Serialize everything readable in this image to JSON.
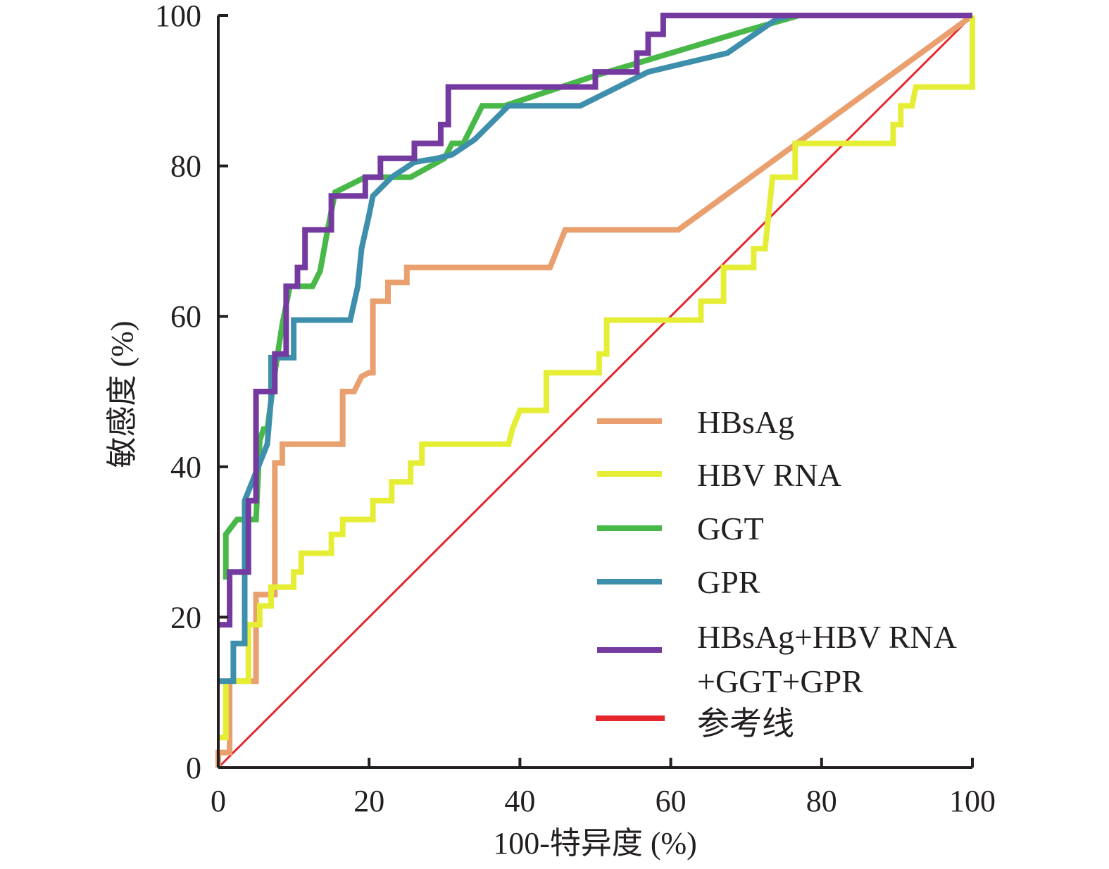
{
  "chart_data": {
    "type": "line",
    "title": "",
    "xlabel": "100-特异度 (%)",
    "ylabel": "敏感度 (%)",
    "xlim": [
      0,
      100
    ],
    "ylim": [
      0,
      100
    ],
    "xticks": [
      "0",
      "20",
      "40",
      "60",
      "80",
      "100"
    ],
    "yticks": [
      "0",
      "20",
      "40",
      "60",
      "80",
      "100"
    ],
    "grid": false,
    "legend_position": "bottom-right",
    "series": [
      {
        "name": "HBsAg",
        "color": "#e9a06e",
        "points": [
          [
            0,
            0
          ],
          [
            0,
            2
          ],
          [
            1.5,
            2
          ],
          [
            1.5,
            11.5
          ],
          [
            5,
            11.5
          ],
          [
            5,
            18.5
          ],
          [
            5,
            23
          ],
          [
            7.5,
            23
          ],
          [
            7.5,
            40.5
          ],
          [
            8.5,
            40.5
          ],
          [
            8.5,
            43
          ],
          [
            16.5,
            43
          ],
          [
            16.5,
            50
          ],
          [
            18,
            50
          ],
          [
            19,
            52
          ],
          [
            20,
            52.5
          ],
          [
            20.5,
            52.5
          ],
          [
            20.5,
            62
          ],
          [
            22.5,
            62
          ],
          [
            22.5,
            64.5
          ],
          [
            25,
            64.5
          ],
          [
            25,
            66.5
          ],
          [
            44,
            66.5
          ],
          [
            46,
            71.5
          ],
          [
            61,
            71.5
          ],
          [
            100,
            100
          ]
        ]
      },
      {
        "name": "HBV RNA",
        "color": "#e6ed35",
        "points": [
          [
            0,
            4
          ],
          [
            1,
            4
          ],
          [
            1,
            11.5
          ],
          [
            4,
            11.5
          ],
          [
            4,
            19
          ],
          [
            5.5,
            19
          ],
          [
            5.5,
            21.5
          ],
          [
            7,
            21.5
          ],
          [
            7,
            24
          ],
          [
            10,
            24
          ],
          [
            10,
            26
          ],
          [
            11,
            26
          ],
          [
            11,
            28.5
          ],
          [
            15,
            28.5
          ],
          [
            15,
            31
          ],
          [
            16.5,
            31
          ],
          [
            16.5,
            33
          ],
          [
            20.5,
            33
          ],
          [
            20.5,
            35.5
          ],
          [
            23,
            35.5
          ],
          [
            23,
            38
          ],
          [
            25.5,
            38
          ],
          [
            25.5,
            40.5
          ],
          [
            27,
            40.5
          ],
          [
            27,
            43
          ],
          [
            38.5,
            43
          ],
          [
            39,
            45
          ],
          [
            40,
            47.5
          ],
          [
            43.5,
            47.5
          ],
          [
            43.5,
            52.5
          ],
          [
            50.5,
            52.5
          ],
          [
            50.5,
            55
          ],
          [
            51.5,
            55
          ],
          [
            51.5,
            59.5
          ],
          [
            64,
            59.5
          ],
          [
            64,
            62
          ],
          [
            67,
            62
          ],
          [
            67,
            66.5
          ],
          [
            71,
            66.5
          ],
          [
            71,
            69
          ],
          [
            72.5,
            69
          ],
          [
            73.5,
            78.5
          ],
          [
            76.5,
            78.5
          ],
          [
            76.5,
            83
          ],
          [
            89.5,
            83
          ],
          [
            89.5,
            85.5
          ],
          [
            90.5,
            85.5
          ],
          [
            90.5,
            88
          ],
          [
            92,
            88
          ],
          [
            92.5,
            90.5
          ],
          [
            100,
            90.5
          ],
          [
            100,
            100
          ]
        ]
      },
      {
        "name": "GGT",
        "color": "#48b848",
        "points": [
          [
            1,
            25
          ],
          [
            1,
            31
          ],
          [
            2.5,
            33
          ],
          [
            5,
            33
          ],
          [
            5.5,
            43.5
          ],
          [
            6,
            45
          ],
          [
            6.5,
            45
          ],
          [
            7.5,
            52.5
          ],
          [
            8.5,
            59
          ],
          [
            9.5,
            64
          ],
          [
            12.5,
            64
          ],
          [
            13.5,
            66
          ],
          [
            14.5,
            71.5
          ],
          [
            15.5,
            76.5
          ],
          [
            19.5,
            78.5
          ],
          [
            25.5,
            78.5
          ],
          [
            30,
            81
          ],
          [
            31,
            83
          ],
          [
            32.5,
            83
          ],
          [
            35,
            88
          ],
          [
            38,
            88
          ],
          [
            50,
            92
          ],
          [
            70,
            98
          ],
          [
            77,
            100
          ]
        ]
      },
      {
        "name": "GPR",
        "color": "#3e8fac",
        "points": [
          [
            0,
            11.5
          ],
          [
            2,
            11.5
          ],
          [
            2,
            16.5
          ],
          [
            3.5,
            16.5
          ],
          [
            3.5,
            35.5
          ],
          [
            6.5,
            43
          ],
          [
            7,
            49
          ],
          [
            7,
            54.5
          ],
          [
            10,
            54.5
          ],
          [
            10,
            59.5
          ],
          [
            17.5,
            59.5
          ],
          [
            18.5,
            64
          ],
          [
            19,
            69
          ],
          [
            20,
            73.5
          ],
          [
            20.5,
            76
          ],
          [
            23,
            78.5
          ],
          [
            26,
            80.5
          ],
          [
            29,
            81
          ],
          [
            31,
            81.5
          ],
          [
            34,
            83.5
          ],
          [
            38.5,
            88
          ],
          [
            48,
            88
          ],
          [
            57,
            92.5
          ],
          [
            67.5,
            95
          ],
          [
            74,
            99.5
          ],
          [
            76,
            100
          ]
        ]
      },
      {
        "name": "HBsAg+HBV RNA+GGT+GPR",
        "color": "#743aa0",
        "points": [
          [
            0,
            19
          ],
          [
            1.5,
            19
          ],
          [
            1.5,
            26
          ],
          [
            4,
            26
          ],
          [
            4,
            35.5
          ],
          [
            5,
            35.5
          ],
          [
            5,
            50
          ],
          [
            7.5,
            50
          ],
          [
            7.5,
            55
          ],
          [
            9,
            55
          ],
          [
            9,
            64
          ],
          [
            10.5,
            64
          ],
          [
            10.5,
            66.5
          ],
          [
            11.5,
            66.5
          ],
          [
            11.5,
            71.5
          ],
          [
            15,
            71.5
          ],
          [
            15,
            76
          ],
          [
            19.5,
            76
          ],
          [
            19.5,
            78.5
          ],
          [
            21.5,
            78.5
          ],
          [
            21.5,
            81
          ],
          [
            26,
            81
          ],
          [
            26,
            83
          ],
          [
            29.5,
            83
          ],
          [
            29.5,
            85.5
          ],
          [
            30.5,
            85.5
          ],
          [
            30.5,
            90.5
          ],
          [
            50,
            90.5
          ],
          [
            50,
            92.5
          ],
          [
            55.5,
            92.5
          ],
          [
            55.5,
            95
          ],
          [
            57,
            95
          ],
          [
            57,
            97.5
          ],
          [
            59,
            97.5
          ],
          [
            59,
            100
          ],
          [
            100,
            100
          ]
        ]
      },
      {
        "name": "参考线",
        "color": "#e5262c",
        "points": [
          [
            0,
            0
          ],
          [
            100,
            100
          ]
        ]
      }
    ]
  }
}
